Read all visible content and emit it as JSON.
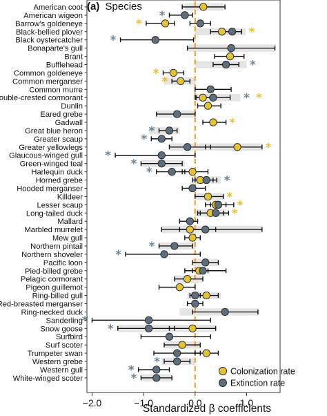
{
  "chart_data": {
    "type": "forest",
    "panel_label": "(a)",
    "title": "Species",
    "xlabel": "Standardized β coefficients",
    "xlim": [
      -2.1,
      1.65
    ],
    "xticks": [
      -2.0,
      -1.0,
      0.0,
      1.0
    ],
    "xtick_labels": [
      "−2.0",
      "−1.0",
      "0.0",
      "1.0"
    ],
    "reference_line": 0.0,
    "colors": {
      "colonization": "#e3c435",
      "extinction": "#5f6e7c",
      "star_colonization": "#e6bf2e",
      "star_extinction": "#6e8493",
      "band": "#e5e5e5",
      "refline": "#f0a030"
    },
    "series": [
      {
        "key": "colonization",
        "name": "Colonization rate"
      },
      {
        "key": "extinction",
        "name": "Extinction rate"
      }
    ],
    "rows": [
      {
        "species": "American coot",
        "band": [
          -0.2,
          0.55
        ],
        "col": {
          "v": 0.16,
          "lo": -0.25,
          "hi": 0.58
        },
        "ext": null,
        "sig_col": false,
        "sig_ext": false
      },
      {
        "species": "American wigeon",
        "band": null,
        "col": null,
        "ext": {
          "v": -0.2,
          "lo": -0.5,
          "hi": -0.05
        },
        "sig_col": false,
        "sig_ext": true
      },
      {
        "species": "Barrow's goldeneye",
        "band": null,
        "col": {
          "v": -0.58,
          "lo": -0.95,
          "hi": -0.4
        },
        "ext": {
          "v": 0.1,
          "lo": -0.1,
          "hi": 0.3
        },
        "sig_col": true,
        "sig_ext": false
      },
      {
        "species": "Black-bellied plover",
        "band": [
          0.0,
          0.98
        ],
        "col": {
          "v": 0.52,
          "lo": 0.3,
          "hi": 0.9
        },
        "ext": {
          "v": 0.72,
          "lo": 0.5,
          "hi": 0.9
        },
        "sig_col": true,
        "sig_ext": false
      },
      {
        "species": "Black oystercatcher",
        "band": null,
        "col": null,
        "ext": {
          "v": -0.77,
          "lo": -1.45,
          "hi": -0.03
        },
        "sig_col": false,
        "sig_ext": true
      },
      {
        "species": "Bonaparte's gull",
        "band": [
          -0.15,
          1.55
        ],
        "col": null,
        "ext": {
          "v": 0.7,
          "lo": -0.15,
          "hi": 1.55
        },
        "sig_col": false,
        "sig_ext": false
      },
      {
        "species": "Brant",
        "band": null,
        "col": {
          "v": 0.68,
          "lo": 0.38,
          "hi": 0.95
        },
        "ext": null,
        "sig_col": false,
        "sig_ext": false
      },
      {
        "species": "Bufflehead",
        "band": [
          0.0,
          1.0
        ],
        "col": null,
        "ext": {
          "v": 0.6,
          "lo": 0.35,
          "hi": 0.85
        },
        "sig_col": false,
        "sig_ext": true
      },
      {
        "species": "Common goldeneye",
        "band": null,
        "col": {
          "v": -0.42,
          "lo": -0.62,
          "hi": -0.22
        },
        "ext": null,
        "sig_col": true,
        "sig_ext": false
      },
      {
        "species": "Common merganser",
        "band": [
          -0.6,
          0.0
        ],
        "col": {
          "v": -0.28,
          "lo": -0.45,
          "hi": -0.1
        },
        "ext": null,
        "sig_col": true,
        "sig_ext": false
      },
      {
        "species": "Common murre",
        "band": null,
        "col": null,
        "ext": {
          "v": 0.3,
          "lo": 0.0,
          "hi": 0.7
        },
        "sig_col": false,
        "sig_ext": false
      },
      {
        "species": "Double-crested cormorant",
        "band": [
          0.0,
          0.88
        ],
        "col": {
          "v": 0.15,
          "lo": 0.0,
          "hi": 0.4
        },
        "ext": {
          "v": 0.35,
          "lo": 0.02,
          "hi": 0.68
        },
        "sig_col": true,
        "sig_ext": true
      },
      {
        "species": "Dunlin",
        "band": null,
        "col": {
          "v": 0.25,
          "lo": 0.05,
          "hi": 0.5
        },
        "ext": null,
        "sig_col": false,
        "sig_ext": false
      },
      {
        "species": "Eared grebe",
        "band": [
          -0.75,
          0.0
        ],
        "col": null,
        "ext": {
          "v": -0.35,
          "lo": -0.75,
          "hi": 0.0
        },
        "sig_col": false,
        "sig_ext": false
      },
      {
        "species": "Gadwall",
        "band": null,
        "col": {
          "v": 0.35,
          "lo": 0.15,
          "hi": 0.6
        },
        "ext": null,
        "sig_col": true,
        "sig_ext": false
      },
      {
        "species": "Great blue heron",
        "band": [
          -0.9,
          -0.3
        ],
        "col": null,
        "ext": {
          "v": -0.5,
          "lo": -0.7,
          "hi": -0.35
        },
        "sig_col": false,
        "sig_ext": true
      },
      {
        "species": "Greater scaup",
        "band": null,
        "col": null,
        "ext": {
          "v": -0.65,
          "lo": -0.85,
          "hi": -0.45
        },
        "sig_col": false,
        "sig_ext": true
      },
      {
        "species": "Greater yellowlegs",
        "band": [
          -0.5,
          1.3
        ],
        "col": {
          "v": 0.82,
          "lo": 0.2,
          "hi": 1.3
        },
        "ext": {
          "v": -0.15,
          "lo": -0.5,
          "hi": 0.3
        },
        "sig_col": true,
        "sig_ext": false
      },
      {
        "species": "Glaucous-winged gull",
        "band": null,
        "col": null,
        "ext": {
          "v": -0.65,
          "lo": -1.55,
          "hi": 0.0
        },
        "sig_col": false,
        "sig_ext": true
      },
      {
        "species": "Green-winged teal",
        "band": [
          -1.05,
          -0.2
        ],
        "col": null,
        "ext": {
          "v": -0.65,
          "lo": -1.05,
          "hi": -0.25
        },
        "sig_col": false,
        "sig_ext": true
      },
      {
        "species": "Harlequin duck",
        "band": null,
        "col": {
          "v": -0.05,
          "lo": -0.25,
          "hi": 0.25
        },
        "ext": {
          "v": -0.45,
          "lo": -0.75,
          "hi": -0.2
        },
        "sig_col": false,
        "sig_ext": true
      },
      {
        "species": "Horned grebe",
        "band": [
          -0.05,
          0.5
        ],
        "col": {
          "v": 0.1,
          "lo": -0.05,
          "hi": 0.35
        },
        "ext": {
          "v": 0.22,
          "lo": 0.0,
          "hi": 0.42
        },
        "sig_col": false,
        "sig_ext": true
      },
      {
        "species": "Hooded merganser",
        "band": null,
        "col": null,
        "ext": {
          "v": -0.05,
          "lo": -0.25,
          "hi": 0.2
        },
        "sig_col": false,
        "sig_ext": false
      },
      {
        "species": "Killdeer",
        "band": [
          0.0,
          0.55
        ],
        "col": {
          "v": 0.25,
          "lo": 0.0,
          "hi": 0.55
        },
        "ext": null,
        "sig_col": true,
        "sig_ext": false
      },
      {
        "species": "Lesser scaup",
        "band": null,
        "col": {
          "v": 0.4,
          "lo": 0.2,
          "hi": 0.6
        },
        "ext": {
          "v": 0.45,
          "lo": 0.3,
          "hi": 0.75
        },
        "sig_col": true,
        "sig_ext": false
      },
      {
        "species": "Long-tailed duck",
        "band": [
          0.0,
          0.6
        ],
        "col": {
          "v": 0.3,
          "lo": 0.05,
          "hi": 0.55
        },
        "ext": {
          "v": 0.4,
          "lo": 0.1,
          "hi": 0.65
        },
        "sig_col": true,
        "sig_ext": false
      },
      {
        "species": "Mallard",
        "band": null,
        "col": null,
        "ext": {
          "v": -0.1,
          "lo": -0.3,
          "hi": 0.05
        },
        "sig_col": false,
        "sig_ext": false
      },
      {
        "species": "Marbled murrelet",
        "band": [
          -0.65,
          1.3
        ],
        "col": {
          "v": -0.1,
          "lo": -0.65,
          "hi": 0.4
        },
        "ext": {
          "v": 0.2,
          "lo": -0.3,
          "hi": 1.3
        },
        "sig_col": false,
        "sig_ext": false
      },
      {
        "species": "Mew gull",
        "band": null,
        "col": {
          "v": -0.05,
          "lo": -0.2,
          "hi": 0.1
        },
        "ext": null,
        "sig_col": false,
        "sig_ext": false
      },
      {
        "species": "Northern pintail",
        "band": [
          -0.7,
          0.0
        ],
        "col": null,
        "ext": {
          "v": -0.4,
          "lo": -0.7,
          "hi": -0.05
        },
        "sig_col": false,
        "sig_ext": true
      },
      {
        "species": "Northern shoveler",
        "band": null,
        "col": null,
        "ext": {
          "v": -0.6,
          "lo": -1.35,
          "hi": 0.1
        },
        "sig_col": false,
        "sig_ext": true
      },
      {
        "species": "Pacific loon",
        "band": [
          -0.05,
          0.45
        ],
        "col": null,
        "ext": {
          "v": 0.2,
          "lo": -0.05,
          "hi": 0.45
        },
        "sig_col": false,
        "sig_ext": false
      },
      {
        "species": "Pied-billed grebe",
        "band": null,
        "col": {
          "v": 0.08,
          "lo": -0.05,
          "hi": 0.25
        },
        "ext": {
          "v": 0.15,
          "lo": -0.2,
          "hi": 0.6
        },
        "sig_col": false,
        "sig_ext": false
      },
      {
        "species": "Pelagic cormorant",
        "band": [
          -0.4,
          0.15
        ],
        "col": {
          "v": -0.15,
          "lo": -0.4,
          "hi": 0.15
        },
        "ext": null,
        "sig_col": false,
        "sig_ext": false
      },
      {
        "species": "Pigeon guillemot",
        "band": null,
        "col": {
          "v": -0.3,
          "lo": -0.7,
          "hi": 0.0
        },
        "ext": null,
        "sig_col": false,
        "sig_ext": false
      },
      {
        "species": "Ring-billed gull",
        "band": [
          -0.15,
          0.5
        ],
        "col": {
          "v": 0.22,
          "lo": 0.0,
          "hi": 0.45
        },
        "ext": {
          "v": 0.0,
          "lo": -0.1,
          "hi": 0.1
        },
        "sig_col": false,
        "sig_ext": false
      },
      {
        "species": "Red-breasted merganser",
        "band": null,
        "col": null,
        "ext": {
          "v": 0.0,
          "lo": -0.15,
          "hi": 0.15
        },
        "sig_col": false,
        "sig_ext": false
      },
      {
        "species": "Ring-necked duck",
        "band": [
          -0.3,
          1.25
        ],
        "col": null,
        "ext": {
          "v": 0.58,
          "lo": -0.05,
          "hi": 1.22
        },
        "sig_col": false,
        "sig_ext": false
      },
      {
        "species": "Sanderling",
        "band": null,
        "col": null,
        "ext": {
          "v": -0.9,
          "lo": -2.0,
          "hi": 0.3
        },
        "sig_col": false,
        "sig_ext": true
      },
      {
        "species": "Snow goose",
        "band": [
          -1.5,
          0.4
        ],
        "col": {
          "v": -0.05,
          "lo": -0.5,
          "hi": 0.4
        },
        "ext": {
          "v": -0.9,
          "lo": -1.5,
          "hi": -0.4
        },
        "sig_col": false,
        "sig_ext": true
      },
      {
        "species": "Surfbird",
        "band": null,
        "col": null,
        "ext": {
          "v": -0.5,
          "lo": -1.05,
          "hi": 0.3
        },
        "sig_col": false,
        "sig_ext": false
      },
      {
        "species": "Surf scoter",
        "band": [
          -0.6,
          0.1
        ],
        "col": {
          "v": -0.25,
          "lo": -0.6,
          "hi": 0.1
        },
        "ext": null,
        "sig_col": false,
        "sig_ext": false
      },
      {
        "species": "Trumpeter swan",
        "band": null,
        "col": {
          "v": 0.22,
          "lo": 0.0,
          "hi": 0.45
        },
        "ext": {
          "v": -0.35,
          "lo": -0.8,
          "hi": 0.1
        },
        "sig_col": false,
        "sig_ext": false
      },
      {
        "species": "Western grebe",
        "band": [
          -0.65,
          0.0
        ],
        "col": null,
        "ext": {
          "v": -0.35,
          "lo": -0.6,
          "hi": -0.1
        },
        "sig_col": false,
        "sig_ext": true
      },
      {
        "species": "Western gull",
        "band": null,
        "col": null,
        "ext": {
          "v": -0.75,
          "lo": -1.1,
          "hi": -0.5
        },
        "sig_col": false,
        "sig_ext": true
      },
      {
        "species": "White-winged scoter",
        "band": [
          -1.05,
          -0.45
        ],
        "col": null,
        "ext": {
          "v": -0.75,
          "lo": -1.05,
          "hi": -0.45
        },
        "sig_col": false,
        "sig_ext": true
      }
    ]
  }
}
